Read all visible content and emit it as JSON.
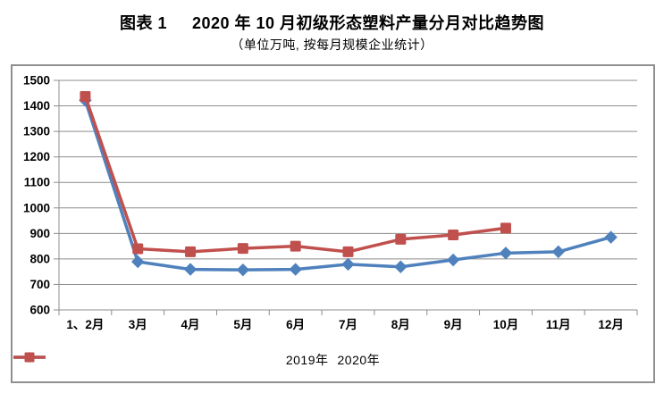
{
  "header": {
    "figure_label": "图表 1",
    "title_main": "2020 年 10 月初级形态塑料产量分月对比趋势图",
    "subtitle": "（单位万吨, 按每月规模企业统计）"
  },
  "chart_data": {
    "type": "line",
    "categories": [
      "1、2月",
      "3月",
      "4月",
      "5月",
      "6月",
      "7月",
      "8月",
      "9月",
      "10月",
      "11月",
      "12月"
    ],
    "series": [
      {
        "name": "2019年",
        "color": "#4F81BD",
        "marker": "diamond",
        "values": [
          1422,
          789,
          759,
          757,
          759,
          779,
          769,
          796,
          823,
          828,
          885
        ]
      },
      {
        "name": "2020年",
        "color": "#C0504D",
        "marker": "square",
        "values": [
          1437,
          840,
          828,
          841,
          850,
          828,
          877,
          894,
          921,
          null,
          null
        ]
      }
    ],
    "title": "2020 年 10 月初级形态塑料产量分月对比趋势图",
    "xlabel": "",
    "ylabel": "",
    "ylim": [
      600,
      1500
    ],
    "ytick_step": 100,
    "grid": "horizontal",
    "legend_position": "bottom",
    "gridline_color": "#8C8C8C",
    "frame_color": "#8F8F8F",
    "axis_text_color": "#000000"
  }
}
